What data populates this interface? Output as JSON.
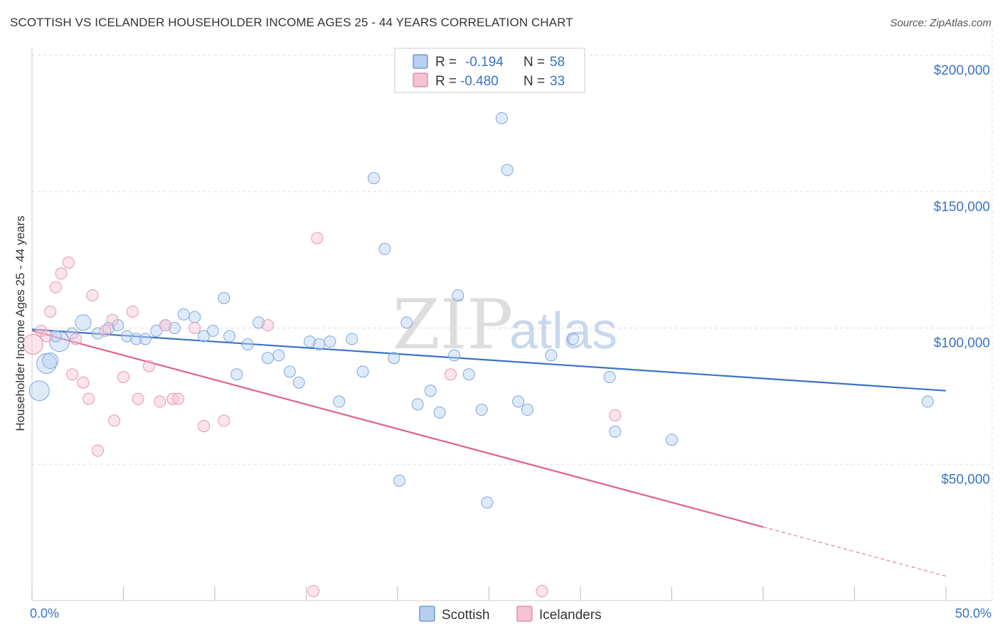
{
  "title": "SCOTTISH VS ICELANDER HOUSEHOLDER INCOME AGES 25 - 44 YEARS CORRELATION CHART",
  "source": "Source: ZipAtlas.com",
  "watermark": {
    "part1": "ZIP",
    "part2": "atlas"
  },
  "colors": {
    "blue": "#3a73c4",
    "blue_fill": "#b7d0f0",
    "pink": "#e06090",
    "pink_fill": "#f6c3d4"
  },
  "legend": {
    "r_label": "R =",
    "n_label": "N =",
    "rows": [
      {
        "name": "Scottish",
        "r": "-0.194",
        "n": "58"
      },
      {
        "name": "Icelanders",
        "r": "-0.480",
        "n": "33"
      }
    ]
  },
  "chart_data": {
    "type": "scatter",
    "title": "SCOTTISH VS ICELANDER HOUSEHOLDER INCOME AGES 25 - 44 YEARS CORRELATION CHART",
    "xlabel": "",
    "ylabel": "Householder Income Ages 25 - 44 years",
    "xlim": [
      0,
      50
    ],
    "ylim": [
      0,
      205000
    ],
    "x_tick_labels": [
      "0.0%",
      "50.0%"
    ],
    "y_ticks": [
      {
        "value": 50000,
        "label": "$50,000"
      },
      {
        "value": 100000,
        "label": "$100,000"
      },
      {
        "value": 150000,
        "label": "$150,000"
      },
      {
        "value": 200000,
        "label": "$200,000"
      }
    ],
    "series": [
      {
        "name": "Scottish",
        "points": [
          [
            0.4,
            77000,
            3
          ],
          [
            0.8,
            87000,
            3
          ],
          [
            1.0,
            88000,
            2
          ],
          [
            1.5,
            95000,
            3
          ],
          [
            2.2,
            98000,
            1
          ],
          [
            2.8,
            102000,
            2
          ],
          [
            3.6,
            98000,
            1
          ],
          [
            4.2,
            100000,
            1
          ],
          [
            4.7,
            101000,
            1
          ],
          [
            5.2,
            97000,
            1
          ],
          [
            5.7,
            96000,
            1
          ],
          [
            6.2,
            96000,
            1
          ],
          [
            6.8,
            99000,
            1
          ],
          [
            7.3,
            101000,
            1
          ],
          [
            7.8,
            100000,
            1
          ],
          [
            8.3,
            105000,
            1
          ],
          [
            8.9,
            104000,
            1
          ],
          [
            9.4,
            97000,
            1
          ],
          [
            9.9,
            99000,
            1
          ],
          [
            10.5,
            111000,
            1
          ],
          [
            10.8,
            97000,
            1
          ],
          [
            11.2,
            83000,
            1
          ],
          [
            11.8,
            94000,
            1
          ],
          [
            12.4,
            102000,
            1
          ],
          [
            12.9,
            89000,
            1
          ],
          [
            13.5,
            90000,
            1
          ],
          [
            14.1,
            84000,
            1
          ],
          [
            14.6,
            80000,
            1
          ],
          [
            15.2,
            95000,
            1
          ],
          [
            15.7,
            94000,
            1
          ],
          [
            16.3,
            95000,
            1
          ],
          [
            16.8,
            73000,
            1
          ],
          [
            17.5,
            96000,
            1
          ],
          [
            18.1,
            84000,
            1
          ],
          [
            18.7,
            155000,
            1
          ],
          [
            19.3,
            129000,
            1
          ],
          [
            19.8,
            89000,
            1
          ],
          [
            20.5,
            102000,
            1
          ],
          [
            21.1,
            72000,
            1
          ],
          [
            21.8,
            77000,
            1
          ],
          [
            22.3,
            69000,
            1
          ],
          [
            23.1,
            90000,
            1
          ],
          [
            23.3,
            112000,
            1
          ],
          [
            23.9,
            83000,
            1
          ],
          [
            24.6,
            70000,
            1
          ],
          [
            25.7,
            177000,
            1
          ],
          [
            26.0,
            158000,
            1
          ],
          [
            26.6,
            73000,
            1
          ],
          [
            27.1,
            70000,
            1
          ],
          [
            28.4,
            90000,
            1
          ],
          [
            29.6,
            96000,
            1
          ],
          [
            31.6,
            82000,
            1
          ],
          [
            31.9,
            62000,
            1
          ],
          [
            35.0,
            59000,
            1
          ],
          [
            20.1,
            44000,
            1
          ],
          [
            24.9,
            36000,
            1
          ],
          [
            49.0,
            73000,
            1
          ],
          [
            1.3,
            97000,
            1
          ]
        ],
        "trend": {
          "x": [
            0,
            50
          ],
          "y": [
            99500,
            77000
          ]
        }
      },
      {
        "name": "Icelanders",
        "points": [
          [
            0.05,
            94000,
            3
          ],
          [
            0.5,
            99000,
            1
          ],
          [
            0.8,
            97000,
            1
          ],
          [
            1.0,
            106000,
            1
          ],
          [
            1.3,
            115000,
            1
          ],
          [
            1.6,
            120000,
            1
          ],
          [
            2.0,
            124000,
            1
          ],
          [
            2.2,
            83000,
            1
          ],
          [
            2.4,
            96000,
            1
          ],
          [
            2.8,
            80000,
            1
          ],
          [
            3.1,
            74000,
            1
          ],
          [
            3.3,
            112000,
            1
          ],
          [
            3.6,
            55000,
            1
          ],
          [
            4.0,
            99000,
            1
          ],
          [
            4.4,
            103000,
            1
          ],
          [
            4.5,
            66000,
            1
          ],
          [
            5.0,
            82000,
            1
          ],
          [
            5.5,
            106000,
            1
          ],
          [
            5.8,
            74000,
            1
          ],
          [
            6.4,
            86000,
            1
          ],
          [
            7.0,
            73000,
            1
          ],
          [
            7.3,
            101000,
            1
          ],
          [
            7.7,
            74000,
            1
          ],
          [
            8.0,
            74000,
            1
          ],
          [
            8.9,
            100000,
            1
          ],
          [
            9.4,
            64000,
            1
          ],
          [
            10.5,
            66000,
            1
          ],
          [
            12.9,
            101000,
            1
          ],
          [
            15.6,
            133000,
            1
          ],
          [
            15.4,
            3500,
            1
          ],
          [
            22.9,
            83000,
            1
          ],
          [
            27.9,
            3500,
            1
          ],
          [
            31.9,
            68000,
            1
          ]
        ],
        "trend": {
          "x": [
            0,
            40
          ],
          "y": [
            99000,
            27000
          ]
        },
        "trend_extension": {
          "x": [
            40,
            50
          ],
          "y": [
            27000,
            9000
          ]
        }
      }
    ]
  },
  "bottom_legend": [
    {
      "name": "Scottish"
    },
    {
      "name": "Icelanders"
    }
  ]
}
